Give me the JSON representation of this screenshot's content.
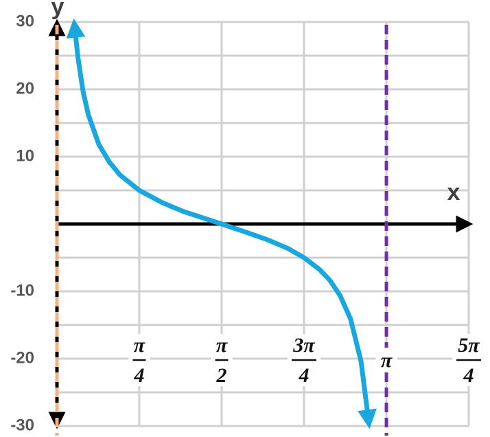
{
  "chart_data": {
    "type": "line",
    "x_label": "x",
    "y_label": "y",
    "xlim": [
      0,
      3.927
    ],
    "ylim": [
      -30,
      30
    ],
    "xticks": [
      {
        "value": 0.785,
        "label": "π/4"
      },
      {
        "value": 1.571,
        "label": "π/2"
      },
      {
        "value": 2.356,
        "label": "3π/4"
      },
      {
        "value": 3.142,
        "label": "π"
      },
      {
        "value": 3.927,
        "label": "5π/4"
      }
    ],
    "yticks": [
      30,
      20,
      10,
      -10,
      -20,
      -30
    ],
    "ygrid": [
      -30,
      -25,
      -20,
      -15,
      -10,
      -5,
      5,
      10,
      15,
      20,
      25,
      30
    ],
    "xgrid": [
      0.785,
      1.571,
      2.356,
      3.142,
      3.927
    ],
    "grid": true,
    "asymptotes": [
      {
        "x": 0,
        "color": "#f4b183"
      },
      {
        "x": 3.142,
        "color": "#7030a0"
      }
    ],
    "series": [
      {
        "color": "#1aa7e0",
        "x": [
          0.17,
          0.2,
          0.25,
          0.3,
          0.4,
          0.5,
          0.6,
          0.785,
          1.0,
          1.2,
          1.571,
          1.8,
          2.0,
          2.2,
          2.356,
          2.5,
          2.6,
          2.7,
          2.8,
          2.9,
          2.97
        ],
        "values": [
          29.1,
          24.7,
          19.6,
          16.2,
          11.8,
          9.2,
          7.3,
          5,
          3.2,
          1.9,
          0,
          -1.2,
          -2.3,
          -3.6,
          -5,
          -6.7,
          -8.3,
          -10.6,
          -14.1,
          -20.4,
          -29
        ]
      }
    ]
  }
}
